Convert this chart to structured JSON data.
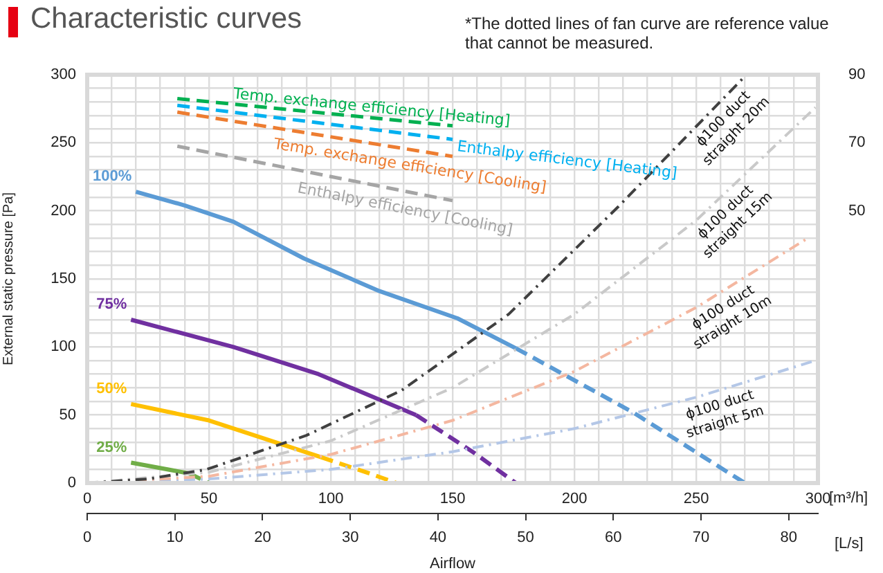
{
  "chart_data": {
    "type": "line",
    "title": "Characteristic curves",
    "ylabel": "External static pressure [Pa]",
    "xlabel": "Airflow",
    "x2label": "[L/s]",
    "annotations": [
      "*The dotted lines of fan curve are reference value that cannot be measured.",
      "[m³/h]"
    ],
    "xlim": [
      0,
      300
    ],
    "ylim": [
      0,
      300
    ],
    "y2lim": [
      -30,
      90
    ],
    "x2lim": [
      0,
      83.333
    ],
    "xticks": [
      0,
      {
        "value": 10,
        "label": null
      },
      {
        "value": 20,
        "label": null
      },
      {
        "value": 30,
        "label": null
      },
      {
        "value": 40,
        "label": null
      },
      50,
      {
        "value": 60,
        "label": null
      },
      {
        "value": 70,
        "label": null
      },
      {
        "value": 80,
        "label": null
      },
      {
        "value": 90,
        "label": null
      },
      100,
      {
        "value": 110,
        "label": null
      },
      {
        "value": 120,
        "label": null
      },
      {
        "value": 130,
        "label": null
      },
      {
        "value": 140,
        "label": null
      },
      150,
      {
        "value": 160,
        "label": null
      },
      {
        "value": 170,
        "label": null
      },
      {
        "value": 180,
        "label": null
      },
      {
        "value": 190,
        "label": null
      },
      200,
      {
        "value": 210,
        "label": null
      },
      {
        "value": 220,
        "label": null
      },
      {
        "value": 230,
        "label": null
      },
      {
        "value": 240,
        "label": null
      },
      250,
      {
        "value": 260,
        "label": null
      },
      {
        "value": 270,
        "label": null
      },
      {
        "value": 280,
        "label": null
      },
      {
        "value": 290,
        "label": null
      },
      300
    ],
    "yticks": [
      0,
      {
        "value": 10,
        "label": null
      },
      {
        "value": 20,
        "label": null
      },
      {
        "value": 30,
        "label": null
      },
      {
        "value": 40,
        "label": null
      },
      50,
      {
        "value": 60,
        "label": null
      },
      {
        "value": 70,
        "label": null
      },
      {
        "value": 80,
        "label": null
      },
      {
        "value": 90,
        "label": null
      },
      100,
      {
        "value": 110,
        "label": null
      },
      {
        "value": 120,
        "label": null
      },
      {
        "value": 130,
        "label": null
      },
      {
        "value": 140,
        "label": null
      },
      150,
      {
        "value": 160,
        "label": null
      },
      {
        "value": 170,
        "label": null
      },
      {
        "value": 180,
        "label": null
      },
      {
        "value": 190,
        "label": null
      },
      200,
      {
        "value": 210,
        "label": null
      },
      {
        "value": 220,
        "label": null
      },
      {
        "value": 230,
        "label": null
      },
      {
        "value": 240,
        "label": null
      },
      250,
      {
        "value": 260,
        "label": null
      },
      {
        "value": 270,
        "label": null
      },
      {
        "value": 280,
        "label": null
      },
      {
        "value": 290,
        "label": null
      },
      300
    ],
    "y2ticks": [
      50,
      70,
      90
    ],
    "x2ticks": [
      0,
      10,
      20,
      30,
      40,
      50,
      60,
      70,
      80
    ],
    "grid": true,
    "legend": false,
    "series": [
      {
        "name": "ϕ100 duct straight 20m",
        "color": "#404040",
        "line_style": "dotted",
        "x": [
          0,
          25,
          49,
          90,
          129,
          173,
          218,
          269
        ],
        "values": [
          0,
          3,
          10,
          35,
          68,
          124,
          203,
          297
        ]
      },
      {
        "name": "ϕ100 duct straight 15m",
        "color": "#c9c9c9",
        "line_style": "dotted",
        "x": [
          0,
          50,
          100,
          150,
          200,
          250,
          299
        ],
        "values": [
          0,
          8,
          31,
          70,
          124,
          193,
          276
        ]
      },
      {
        "name": "ϕ100 duct straight 10m",
        "color": "#f4b7a0",
        "line_style": "dotted",
        "x": [
          0,
          50,
          100,
          150,
          200,
          250,
          295
        ],
        "values": [
          0,
          5,
          21,
          46,
          82,
          129,
          179
        ]
      },
      {
        "name": "ϕ100 duct straight 5m",
        "color": "#b4c7e7",
        "line_style": "dotted",
        "x": [
          0,
          50,
          100,
          150,
          200,
          250,
          299
        ],
        "values": [
          0,
          3,
          10,
          23,
          40,
          63,
          90
        ]
      },
      {
        "name": "100%",
        "color": "#5b9bd5",
        "x": [
          20,
          40,
          60,
          89,
          120,
          152,
          176
        ],
        "values": [
          214,
          204,
          192,
          165,
          141,
          121,
          99
        ]
      },
      {
        "color": "#5b9bd5",
        "line_style": "dashed",
        "x": [
          176,
          224,
          270
        ],
        "values": [
          99,
          52,
          0
        ]
      },
      {
        "name": "75%",
        "color": "#7030a0",
        "x": [
          18,
          60,
          95,
          135
        ],
        "values": [
          120,
          100,
          80,
          50
        ]
      },
      {
        "color": "#7030a0",
        "line_style": "dashed",
        "x": [
          135,
          159,
          176
        ],
        "values": [
          50,
          22,
          0
        ]
      },
      {
        "name": "50%",
        "color": "#ffc000",
        "x": [
          18,
          50,
          96
        ],
        "values": [
          58,
          46,
          19
        ]
      },
      {
        "color": "#ffc000",
        "line_style": "dashed",
        "x": [
          96,
          116,
          127
        ],
        "values": [
          19,
          7,
          0
        ]
      },
      {
        "name": "25%",
        "color": "#70ad47",
        "x": [
          18,
          42
        ],
        "values": [
          15,
          7
        ]
      },
      {
        "color": "#70ad47",
        "line_style": "dashed",
        "x": [
          42,
          50
        ],
        "values": [
          7,
          0
        ]
      },
      {
        "name": "Temp. exchange efficiency [Heating]",
        "color": "#00b050",
        "line_style": "dashed",
        "axis": "y2",
        "x": [
          37,
          150
        ],
        "values": [
          83,
          75
        ]
      },
      {
        "name": "Enthalpy efficiency [Heating]",
        "color": "#00b0f0",
        "line_style": "dashed",
        "axis": "y2",
        "x": [
          37,
          150
        ],
        "values": [
          81,
          71
        ]
      },
      {
        "name": "Temp. exchange efficiency [Cooling]",
        "color": "#ed7d31",
        "line_style": "dashed",
        "axis": "y2",
        "x": [
          37,
          150
        ],
        "values": [
          79,
          66
        ]
      },
      {
        "name": "Enthalpy efficiency [Cooling]",
        "color": "#a5a5a5",
        "line_style": "dashed",
        "axis": "y2",
        "x": [
          37,
          150
        ],
        "values": [
          69,
          53
        ]
      }
    ]
  }
}
